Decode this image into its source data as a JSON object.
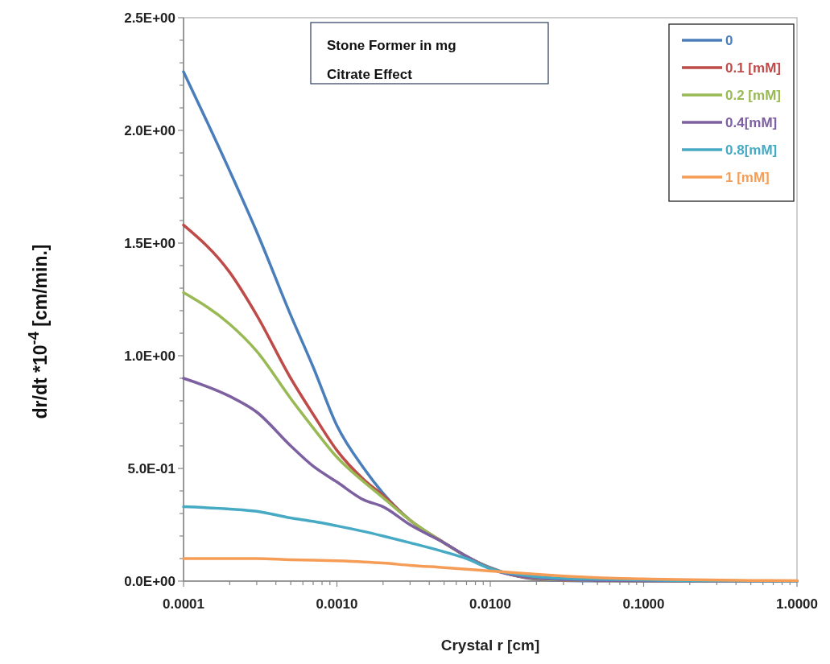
{
  "chart_data": {
    "type": "line",
    "xlabel": "Crystal  r [cm]",
    "ylabel": "dr/dt *10$^{-4}$ [cm/min.]",
    "annotations": [
      "Stone Former in mg",
      "Citrate Effect"
    ],
    "log": "x",
    "xlim": [
      0.0001,
      1
    ],
    "ylim": [
      0,
      2.5
    ],
    "xticks": [
      {
        "value": 0.0001,
        "label": "0.0001"
      },
      {
        "value": 0.0002,
        "label": null
      },
      {
        "value": 0.0003,
        "label": null
      },
      {
        "value": 0.0004,
        "label": null
      },
      {
        "value": 0.0005,
        "label": null
      },
      {
        "value": 0.0006,
        "label": null
      },
      {
        "value": 0.0007,
        "label": null
      },
      {
        "value": 0.0008,
        "label": null
      },
      {
        "value": 0.0009,
        "label": null
      },
      {
        "value": 0.001,
        "label": "0.0010"
      },
      {
        "value": 0.002,
        "label": null
      },
      {
        "value": 0.003,
        "label": null
      },
      {
        "value": 0.004,
        "label": null
      },
      {
        "value": 0.005,
        "label": null
      },
      {
        "value": 0.006,
        "label": null
      },
      {
        "value": 0.007,
        "label": null
      },
      {
        "value": 0.008,
        "label": null
      },
      {
        "value": 0.009,
        "label": null
      },
      {
        "value": 0.01,
        "label": "0.0100"
      },
      {
        "value": 0.02,
        "label": null
      },
      {
        "value": 0.03,
        "label": null
      },
      {
        "value": 0.04,
        "label": null
      },
      {
        "value": 0.05,
        "label": null
      },
      {
        "value": 0.06,
        "label": null
      },
      {
        "value": 0.07,
        "label": null
      },
      {
        "value": 0.08,
        "label": null
      },
      {
        "value": 0.09,
        "label": null
      },
      {
        "value": 0.1,
        "label": "0.1000"
      },
      {
        "value": 0.2,
        "label": null
      },
      {
        "value": 0.3,
        "label": null
      },
      {
        "value": 0.4,
        "label": null
      },
      {
        "value": 0.5,
        "label": null
      },
      {
        "value": 0.6,
        "label": null
      },
      {
        "value": 0.7,
        "label": null
      },
      {
        "value": 0.8,
        "label": null
      },
      {
        "value": 0.9,
        "label": null
      },
      {
        "value": 1,
        "label": "1.0000"
      }
    ],
    "yticks": [
      {
        "value": 0,
        "label": "0.0E+00"
      },
      {
        "value": 0.1,
        "label": null
      },
      {
        "value": 0.2,
        "label": null
      },
      {
        "value": 0.3,
        "label": null
      },
      {
        "value": 0.4,
        "label": null
      },
      {
        "value": 0.5,
        "label": "5.0E-01"
      },
      {
        "value": 0.6,
        "label": null
      },
      {
        "value": 0.7,
        "label": null
      },
      {
        "value": 0.8,
        "label": null
      },
      {
        "value": 0.9,
        "label": null
      },
      {
        "value": 1,
        "label": "1.0E+00"
      },
      {
        "value": 1.1,
        "label": null
      },
      {
        "value": 1.2,
        "label": null
      },
      {
        "value": 1.3,
        "label": null
      },
      {
        "value": 1.4,
        "label": null
      },
      {
        "value": 1.5,
        "label": "1.5E+00"
      },
      {
        "value": 1.6,
        "label": null
      },
      {
        "value": 1.7,
        "label": null
      },
      {
        "value": 1.8,
        "label": null
      },
      {
        "value": 1.9,
        "label": null
      },
      {
        "value": 2,
        "label": "2.0E+00"
      },
      {
        "value": 2.1,
        "label": null
      },
      {
        "value": 2.2,
        "label": null
      },
      {
        "value": 2.3,
        "label": null
      },
      {
        "value": 2.4,
        "label": null
      },
      {
        "value": 2.5,
        "label": "2.5E+00"
      }
    ],
    "grid": false,
    "legend": "top right",
    "marker": "none",
    "line_style": "solid",
    "x": [
      0.0001,
      0.0002,
      0.0003,
      0.0005,
      0.0007,
      0.001,
      0.0015,
      0.002,
      0.003,
      0.005,
      0.007,
      0.01,
      0.02,
      0.03,
      0.05,
      0.1,
      0.2,
      0.5,
      1
    ],
    "series": [
      {
        "name": "0",
        "color": "#4a7ebb",
        "values": [
          2.26,
          1.82,
          1.55,
          1.18,
          0.95,
          0.69,
          0.5,
          0.39,
          0.27,
          0.17,
          0.11,
          0.06,
          0.008,
          0.003,
          0.001,
          0,
          0,
          0,
          0
        ]
      },
      {
        "name": "0.1 [mM]",
        "color": "#be4b48",
        "values": [
          1.58,
          1.37,
          1.18,
          0.9,
          0.74,
          0.58,
          0.45,
          0.38,
          0.27,
          0.17,
          0.11,
          0.058,
          0.01,
          0.004,
          0.002,
          0.001,
          0,
          0,
          0
        ]
      },
      {
        "name": "0.2 [mM]",
        "color": "#98b954",
        "values": [
          1.28,
          1.14,
          1.02,
          0.81,
          0.68,
          0.55,
          0.44,
          0.37,
          0.27,
          0.17,
          0.11,
          0.057,
          0.012,
          0.005,
          0.002,
          0.001,
          0,
          0,
          0
        ]
      },
      {
        "name": "0.4[mM]",
        "color": "#7d60a0",
        "values": [
          0.9,
          0.82,
          0.75,
          0.6,
          0.51,
          0.44,
          0.36,
          0.33,
          0.25,
          0.17,
          0.11,
          0.055,
          0.014,
          0.006,
          0.003,
          0.001,
          0,
          0,
          0
        ]
      },
      {
        "name": "0.8[mM]",
        "color": "#46aac5",
        "values": [
          0.33,
          0.32,
          0.31,
          0.28,
          0.265,
          0.245,
          0.22,
          0.2,
          0.17,
          0.13,
          0.1,
          0.055,
          0.02,
          0.012,
          0.008,
          0.005,
          0.002,
          0.001,
          0
        ]
      },
      {
        "name": "1 [mM]",
        "color": "#f59d56",
        "values": [
          0.1,
          0.1,
          0.1,
          0.095,
          0.093,
          0.09,
          0.085,
          0.08,
          0.07,
          0.06,
          0.053,
          0.045,
          0.03,
          0.022,
          0.015,
          0.01,
          0.006,
          0.003,
          0.002
        ]
      }
    ]
  }
}
